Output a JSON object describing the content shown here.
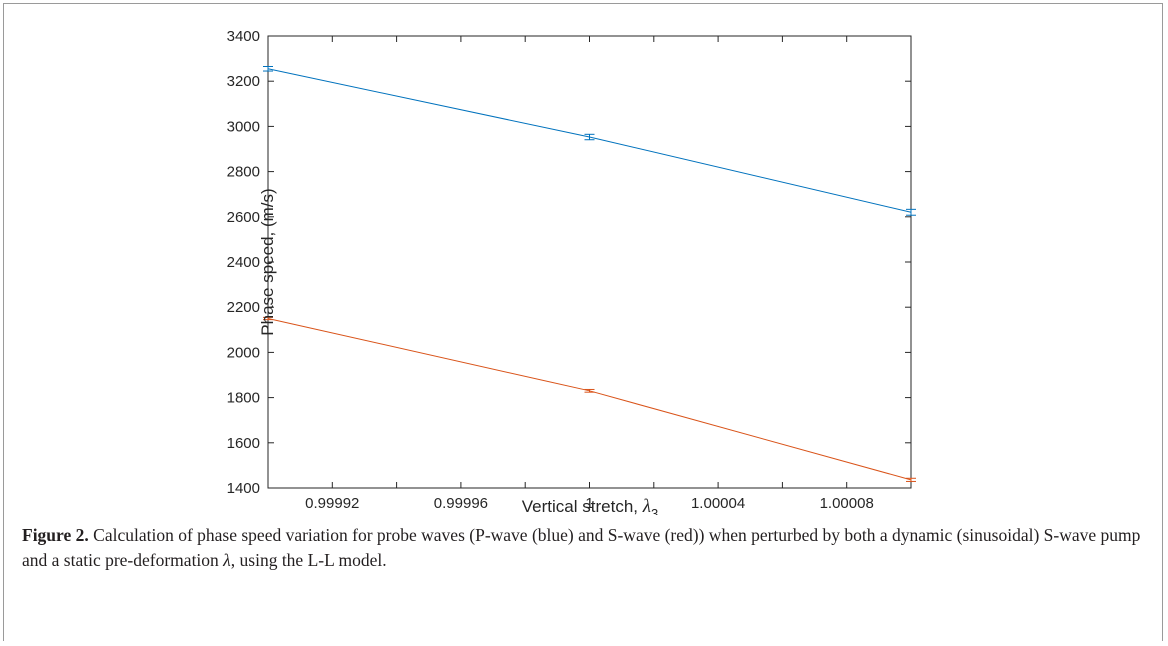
{
  "chart_data": {
    "type": "line",
    "xlabel": "Vertical stretch,",
    "xlabel_symbol": "λ",
    "xlabel_subscript": "3",
    "ylabel": "Phase speed, (m/s)",
    "xlim": [
      0.9999,
      1.0001
    ],
    "ylim": [
      1400,
      3400
    ],
    "x_ticks": [
      0.9999,
      0.99992,
      0.99994,
      0.99996,
      0.99998,
      1.0,
      1.00002,
      1.00004,
      1.00006,
      1.00008,
      1.0001
    ],
    "x_tick_labels": [
      "",
      "0.99992",
      "",
      "0.99996",
      "",
      "1",
      "",
      "1.00004",
      "",
      "1.00008",
      ""
    ],
    "y_ticks": [
      1400,
      1600,
      1800,
      2000,
      2200,
      2400,
      2600,
      2800,
      3000,
      3200,
      3400
    ],
    "y_tick_labels": [
      "1400",
      "1600",
      "1800",
      "2000",
      "2200",
      "2400",
      "2600",
      "2800",
      "3000",
      "3200",
      "3400"
    ],
    "grid": false,
    "series": [
      {
        "color": "#0072bd",
        "x": [
          0.9999,
          1.0,
          1.0001
        ],
        "y": [
          3255,
          2953,
          2620
        ],
        "err": [
          10,
          12,
          13
        ]
      },
      {
        "color": "#d95319",
        "x": [
          0.9999,
          1.0,
          1.0001
        ],
        "y": [
          2150,
          1830,
          1436
        ],
        "err": [
          5,
          6,
          7
        ]
      }
    ]
  },
  "caption": {
    "label": "Figure 2.",
    "text_before_symbol": " Calculation of phase speed variation for probe waves (P-wave (blue) and S-wave (red)) when perturbed by both a dynamic (sinusoidal) S-wave pump and a static pre-deformation ",
    "symbol": "λ",
    "text_after_symbol": ", using the L-L model."
  }
}
